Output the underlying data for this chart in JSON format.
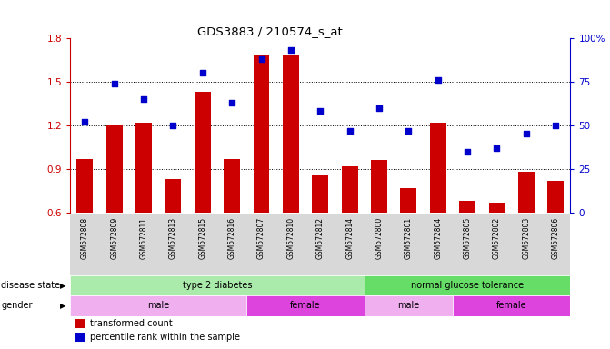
{
  "title": "GDS3883 / 210574_s_at",
  "samples": [
    "GSM572808",
    "GSM572809",
    "GSM572811",
    "GSM572813",
    "GSM572815",
    "GSM572816",
    "GSM572807",
    "GSM572810",
    "GSM572812",
    "GSM572814",
    "GSM572800",
    "GSM572801",
    "GSM572804",
    "GSM572805",
    "GSM572802",
    "GSM572803",
    "GSM572806"
  ],
  "bar_values": [
    0.97,
    1.2,
    1.22,
    0.83,
    1.43,
    0.97,
    1.68,
    1.68,
    0.86,
    0.92,
    0.96,
    0.77,
    1.22,
    0.68,
    0.67,
    0.88,
    0.82
  ],
  "dot_values": [
    52,
    74,
    65,
    50,
    80,
    63,
    88,
    93,
    58,
    47,
    60,
    47,
    76,
    35,
    37,
    45,
    50
  ],
  "bar_color": "#cc0000",
  "dot_color": "#0000cc",
  "ylim_left": [
    0.6,
    1.8
  ],
  "ylim_right": [
    0,
    100
  ],
  "yticks_left": [
    0.6,
    0.9,
    1.2,
    1.5,
    1.8
  ],
  "yticks_right": [
    0,
    25,
    50,
    75,
    100
  ],
  "ytick_labels_right": [
    "0",
    "25",
    "50",
    "75",
    "100%"
  ],
  "hlines": [
    0.9,
    1.2,
    1.5
  ],
  "disease_state_groups": [
    {
      "label": "type 2 diabetes",
      "start": 0,
      "end": 10,
      "color": "#aaeaaa"
    },
    {
      "label": "normal glucose tolerance",
      "start": 10,
      "end": 17,
      "color": "#66dd66"
    }
  ],
  "gender_groups": [
    {
      "label": "male",
      "start": 0,
      "end": 6,
      "color": "#f0b0f0"
    },
    {
      "label": "female",
      "start": 6,
      "end": 10,
      "color": "#dd44dd"
    },
    {
      "label": "male",
      "start": 10,
      "end": 13,
      "color": "#f0b0f0"
    },
    {
      "label": "female",
      "start": 13,
      "end": 17,
      "color": "#dd44dd"
    }
  ],
  "legend_items": [
    {
      "label": "transformed count",
      "color": "#cc0000"
    },
    {
      "label": "percentile rank within the sample",
      "color": "#0000cc"
    }
  ],
  "left_axis_color": "#cc0000",
  "right_axis_color": "#0000cc",
  "background_color": "#ffffff",
  "annotation_row1_label": "disease state",
  "annotation_row2_label": "gender",
  "bar_bottom": 0.6
}
